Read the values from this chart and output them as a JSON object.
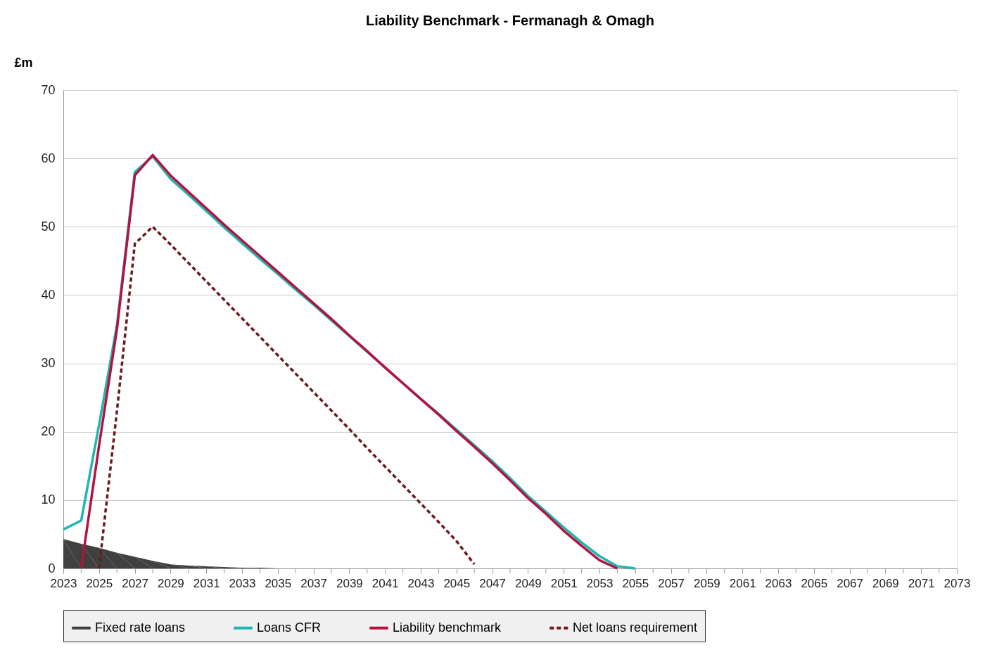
{
  "chart_data": {
    "type": "line",
    "title": "Liability Benchmark - Fermanagh & Omagh",
    "ylabel": "£m",
    "xlim": [
      2023,
      2073
    ],
    "xticks": [
      2023,
      {
        "value": 2024,
        "label": null
      },
      2025,
      {
        "value": 2026,
        "label": null
      },
      2027,
      {
        "value": 2028,
        "label": null
      },
      2029,
      {
        "value": 2030,
        "label": null
      },
      2031,
      {
        "value": 2032,
        "label": null
      },
      2033,
      {
        "value": 2034,
        "label": null
      },
      2035,
      {
        "value": 2036,
        "label": null
      },
      2037,
      {
        "value": 2038,
        "label": null
      },
      2039,
      {
        "value": 2040,
        "label": null
      },
      2041,
      {
        "value": 2042,
        "label": null
      },
      2043,
      {
        "value": 2044,
        "label": null
      },
      2045,
      {
        "value": 2046,
        "label": null
      },
      2047,
      {
        "value": 2048,
        "label": null
      },
      2049,
      {
        "value": 2050,
        "label": null
      },
      2051,
      {
        "value": 2052,
        "label": null
      },
      2053,
      {
        "value": 2054,
        "label": null
      },
      2055,
      {
        "value": 2056,
        "label": null
      },
      2057,
      {
        "value": 2058,
        "label": null
      },
      2059,
      {
        "value": 2060,
        "label": null
      },
      2061,
      {
        "value": 2062,
        "label": null
      },
      2063,
      {
        "value": 2064,
        "label": null
      },
      2065,
      {
        "value": 2066,
        "label": null
      },
      2067,
      {
        "value": 2068,
        "label": null
      },
      2069,
      {
        "value": 2070,
        "label": null
      },
      2071,
      {
        "value": 2072,
        "label": null
      },
      2073
    ],
    "ylim": [
      0,
      70
    ],
    "yticks": [
      0,
      10,
      20,
      30,
      40,
      50,
      60,
      70
    ],
    "grid": "y",
    "legend": "bottom",
    "series": [
      {
        "name": "Fixed rate loans",
        "type": "area",
        "color": "#404040",
        "x": [
          2023,
          2024,
          2025,
          2026,
          2027,
          2028,
          2029,
          2030,
          2031,
          2032,
          2033,
          2034,
          2035,
          2036
        ],
        "values": [
          4.3,
          3.6,
          3,
          2.3,
          1.7,
          1.1,
          0.6,
          0.4,
          0.3,
          0.2,
          0.1,
          0.1,
          0,
          0
        ]
      },
      {
        "name": "Loans CFR",
        "color": "#1fb5b0",
        "line_style": "solid",
        "x": [
          2023,
          2024,
          2025,
          2026,
          2027,
          2028,
          2029,
          2030,
          2031,
          2032,
          2033,
          2034,
          2035,
          2036,
          2037,
          2038,
          2039,
          2040,
          2041,
          2042,
          2043,
          2044,
          2045,
          2046,
          2047,
          2048,
          2049,
          2050,
          2051,
          2052,
          2053,
          2054,
          2055
        ],
        "values": [
          5.7,
          7,
          21,
          35.6,
          58,
          60.3,
          57,
          54.7,
          52.3,
          49.9,
          47.6,
          45.3,
          43.1,
          40.8,
          38.6,
          36.3,
          34,
          31.7,
          29.4,
          27.1,
          24.8,
          22.6,
          20.3,
          18,
          15.7,
          13.2,
          10.6,
          8.3,
          6,
          3.8,
          1.8,
          0.3,
          0
        ]
      },
      {
        "name": "Liability benchmark",
        "color": "#b5123e",
        "line_style": "solid",
        "x": [
          2024,
          2025,
          2026,
          2027,
          2028,
          2029,
          2030,
          2031,
          2032,
          2033,
          2034,
          2035,
          2036,
          2037,
          2038,
          2039,
          2040,
          2041,
          2042,
          2043,
          2044,
          2045,
          2046,
          2047,
          2048,
          2049,
          2050,
          2051,
          2052,
          2053,
          2054
        ],
        "values": [
          0,
          18,
          35,
          57.5,
          60.5,
          57.5,
          55.1,
          52.7,
          50.3,
          48,
          45.7,
          43.4,
          41.1,
          38.8,
          36.5,
          34.1,
          31.8,
          29.4,
          27.1,
          24.8,
          22.5,
          20.1,
          17.8,
          15.4,
          12.9,
          10.3,
          8,
          5.5,
          3.3,
          1.2,
          0
        ]
      },
      {
        "name": "Net loans requirement",
        "color": "#6b1a1f",
        "line_style": "dashed",
        "x": [
          2025,
          2026,
          2027,
          2028,
          2029,
          2030,
          2031,
          2032,
          2033,
          2034,
          2035,
          2036,
          2037,
          2038,
          2039,
          2040,
          2041,
          2042,
          2043,
          2044,
          2045,
          2046
        ],
        "values": [
          0,
          23,
          47.5,
          50,
          47.4,
          44.7,
          42,
          39.3,
          36.6,
          33.9,
          31.2,
          28.5,
          25.8,
          23.1,
          20.4,
          17.6,
          14.9,
          12.2,
          9.5,
          6.8,
          4,
          0.6
        ]
      }
    ]
  }
}
